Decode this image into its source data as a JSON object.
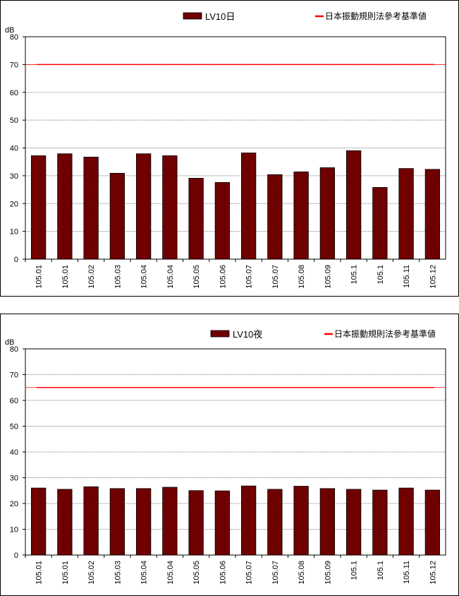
{
  "chart_data": [
    {
      "type": "bar",
      "ylabel": "dB",
      "ylim": [
        0,
        80
      ],
      "yticks": [
        0,
        10,
        20,
        30,
        40,
        50,
        60,
        70,
        80
      ],
      "grid": true,
      "legend_position": "top",
      "categories": [
        "105.01",
        "105.01",
        "105.02",
        "105.03",
        "105.04",
        "105.04",
        "105.05",
        "105.06",
        "105.07",
        "105.07",
        "105.08",
        "105.09",
        "105.1",
        "105.1",
        "105.11",
        "105.12"
      ],
      "series": [
        {
          "name": "LV10日",
          "type": "bar",
          "color": "#800000",
          "values": [
            37.2,
            37.9,
            36.7,
            30.9,
            37.9,
            37.2,
            29.1,
            27.6,
            38.2,
            30.4,
            31.4,
            32.9,
            39.0,
            25.8,
            32.6,
            32.3
          ]
        },
        {
          "name": "日本振動規則法參考基準値",
          "type": "line",
          "color": "#ff0000",
          "value": 70
        }
      ]
    },
    {
      "type": "bar",
      "ylabel": "dB",
      "ylim": [
        0,
        80
      ],
      "yticks": [
        0,
        10,
        20,
        30,
        40,
        50,
        60,
        70,
        80
      ],
      "grid": true,
      "legend_position": "top",
      "categories": [
        "105.01",
        "105.01",
        "105.02",
        "105.03",
        "105.04",
        "105.04",
        "105.05",
        "105.06",
        "105.07",
        "105.07",
        "105.08",
        "105.09",
        "105.1",
        "105.1",
        "105.11",
        "105.12"
      ],
      "series": [
        {
          "name": "LV10夜",
          "type": "bar",
          "color": "#800000",
          "values": [
            26.0,
            25.5,
            26.5,
            25.8,
            25.8,
            26.3,
            25.0,
            24.9,
            26.8,
            25.5,
            26.7,
            25.8,
            25.5,
            25.2,
            26.0,
            25.2
          ]
        },
        {
          "name": "日本振動規則法參考基準値",
          "type": "line",
          "color": "#ff0000",
          "value": 65
        }
      ]
    }
  ]
}
